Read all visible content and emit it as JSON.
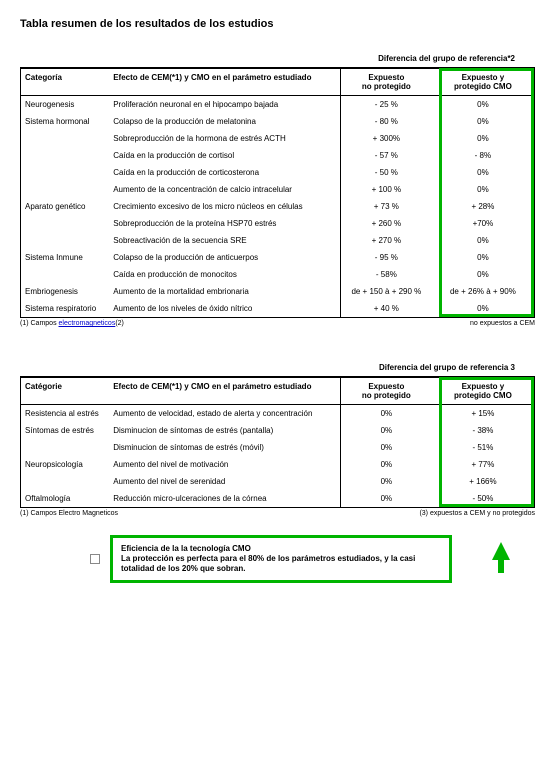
{
  "title": "Tabla resumen de los resultados de los estudios",
  "refHeader1": "Diferencia del grupo de referencia*2",
  "refHeader2": "Diferencia del grupo de referencia 3",
  "colHeaders": {
    "cat": "Categoría",
    "cat2": "Catégorie",
    "eff": "Efecto de CEM(*1) y CMO en el parámetro estudiado",
    "np": "Expuesto\nno protegido",
    "p": "Expuesto y\nprotegido CMO"
  },
  "table1": [
    {
      "cat": "Neurogenesis",
      "eff": "Proliferación neuronal en el hipocampo bajada",
      "np": "- 25 %",
      "p": "0%"
    },
    {
      "cat": "Sistema hormonal",
      "eff": "Colapso de la producción de melatonina",
      "np": "- 80 %",
      "p": "0%"
    },
    {
      "cat": "",
      "eff": "Sobreproducción de la hormona de estrés ACTH",
      "np": "+ 300%",
      "p": "0%"
    },
    {
      "cat": "",
      "eff": "Caída en la producción de cortisol",
      "np": "- 57 %",
      "p": "- 8%"
    },
    {
      "cat": "",
      "eff": "Caída en la producción de corticosterona",
      "np": "- 50 %",
      "p": "0%"
    },
    {
      "cat": "",
      "eff": "Aumento de la concentración de calcio intracelular",
      "np": "+ 100 %",
      "p": "0%"
    },
    {
      "cat": "Aparato genético",
      "eff": "Crecimiento excesivo de los micro núcleos en células",
      "np": "+ 73 %",
      "p": "+ 28%"
    },
    {
      "cat": "",
      "eff": " Sobreproducción de la proteína HSP70 estrés",
      "np": "+ 260 %",
      "p": "+70%"
    },
    {
      "cat": "",
      "eff": "Sobreactivación de la secuencia SRE",
      "np": "+ 270 %",
      "p": "0%"
    },
    {
      "cat": "Sistema Inmune",
      "eff": " Colapso de la producción de anticuerpos",
      "np": "- 95 %",
      "p": "0%"
    },
    {
      "cat": "",
      "eff": "Caída en producción de monocitos",
      "np": "- 58%",
      "p": "0%"
    },
    {
      "cat": "Embriogenesis",
      "eff": "Aumento de la mortalidad embrionaria",
      "np": "de + 150 à + 290 %",
      "p": "de + 26% à + 90%"
    },
    {
      "cat": "Sistema respiratorio",
      "eff": "Aumento de los niveles de óxido nítrico",
      "np": "+ 40 %",
      "p": "0%"
    }
  ],
  "foot1_left_a": "(1) Campos ",
  "foot1_left_b": "electromagneticos",
  "foot1_left_c": "(2)",
  "foot1_right": "no expuestos a CEM",
  "table2": [
    {
      "cat": "Resistencia al estrés",
      "eff": "Aumento de velocidad, estado de alerta y concentración",
      "np": "0%",
      "p": "+ 15%"
    },
    {
      "cat": "Síntomas de estrés",
      "eff": "Disminucion de síntomas de estrés (pantalla)",
      "np": "0%",
      "p": "- 38%"
    },
    {
      "cat": "",
      "eff": "Disminucion de síntomas de estrés (móvil)",
      "np": "0%",
      "p": "- 51%"
    },
    {
      "cat": "Neuropsicología",
      "eff": "Aumento del nivel de motivación",
      "np": "0%",
      "p": "+ 77%"
    },
    {
      "cat": "",
      "eff": "Aumento del nivel de serenidad",
      "np": "0%",
      "p": "+ 166%"
    },
    {
      "cat": "Oftalmología",
      "eff": "Reducción micro-ulceraciones de la córnea",
      "np": "0%",
      "p": "- 50%"
    }
  ],
  "foot2_left": "(1) Campos Electro Magneticos",
  "foot2_right": "(3) expuestos a CEM y no protegidos",
  "efficiency_title": "Eficiencia de la la tecnología CMO",
  "efficiency_body": " La protección es perfecta para el 80% de los parámetros estudiados, y la casi totalidad de los 20% que sobran."
}
